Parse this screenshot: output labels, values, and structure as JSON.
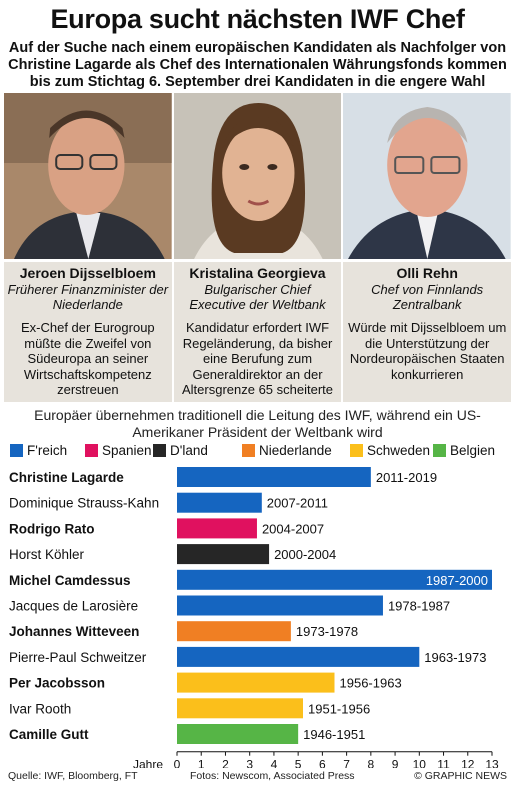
{
  "header": {
    "title": "Europa sucht nächsten IWF Chef",
    "subtitle": "Auf der Suche nach einem europäischen Kandidaten als Nachfolger von Christine Lagarde als Chef des Internationalen Währungsfonds kommen bis zum Stichtag 6. September drei Kandidaten in die engere Wahl"
  },
  "candidates": [
    {
      "name": "Jeroen Dijsselbloem",
      "role": "Früherer Finanzminister der Niederlande",
      "desc": "Ex-Chef der Eurogroup müßte die Zweifel von Südeuropa an seiner Wirtschaftskompetenz zerstreuen"
    },
    {
      "name": "Kristalina Georgieva",
      "role": "Bulgarischer Chief Executive der Weltbank",
      "desc": "Kandidatur erfordert IWF Regeländerung, da bisher eine Berufung zum Generaldirektor an der Altersgrenze 65 scheiterte"
    },
    {
      "name": "Olli Rehn",
      "role": "Chef von Finnlands Zentralbank",
      "desc": "Würde mit Dijsselbloem um die Unterstützung der Nordeuropäischen Staaten konkurrieren"
    }
  ],
  "chart_note": "Europäer übernehmen traditionell die Leitung des IWF, während ein US-Amerikaner Präsident der Weltbank wird",
  "legend": [
    {
      "label": "F'reich",
      "color": "#1565c0"
    },
    {
      "label": "Spanien",
      "color": "#e0115f"
    },
    {
      "label": "D'land",
      "color": "#262626"
    },
    {
      "label": "Niederlande",
      "color": "#f07f23"
    },
    {
      "label": "Schweden",
      "color": "#fbbf1b"
    },
    {
      "label": "Belgien",
      "color": "#56b546"
    }
  ],
  "chart_data": {
    "type": "bar",
    "orientation": "horizontal",
    "xlabel": "Jahre",
    "xlim": [
      0,
      13
    ],
    "xticks": [
      0,
      1,
      2,
      3,
      4,
      5,
      6,
      7,
      8,
      9,
      10,
      11,
      12,
      13
    ],
    "grid": false,
    "bars": [
      {
        "name": "Christine Lagarde",
        "period": "2011-2019",
        "value": 8,
        "country": "F'reich",
        "bold": true
      },
      {
        "name": "Dominique Strauss-Kahn",
        "period": "2007-2011",
        "value": 3.5,
        "country": "F'reich",
        "bold": false
      },
      {
        "name": "Rodrigo Rato",
        "period": "2004-2007",
        "value": 3.3,
        "country": "Spanien",
        "bold": true
      },
      {
        "name": "Horst Köhler",
        "period": "2000-2004",
        "value": 3.8,
        "country": "D'land",
        "bold": false
      },
      {
        "name": "Michel Camdessus",
        "period": "1987-2000",
        "value": 13,
        "country": "F'reich",
        "bold": true
      },
      {
        "name": "Jacques de Larosière",
        "period": "1978-1987",
        "value": 8.5,
        "country": "F'reich",
        "bold": false
      },
      {
        "name": "Johannes Witteveen",
        "period": "1973-1978",
        "value": 4.7,
        "country": "Niederlande",
        "bold": true
      },
      {
        "name": "Pierre-Paul Schweitzer",
        "period": "1963-1973",
        "value": 10,
        "country": "F'reich",
        "bold": false
      },
      {
        "name": "Per Jacobsson",
        "period": "1956-1963",
        "value": 6.5,
        "country": "Schweden",
        "bold": true
      },
      {
        "name": "Ivar Rooth",
        "period": "1951-1956",
        "value": 5.2,
        "country": "Schweden",
        "bold": false
      },
      {
        "name": "Camille Gutt",
        "period": "1946-1951",
        "value": 5,
        "country": "Belgien",
        "bold": true
      }
    ]
  },
  "footer": {
    "source": "Quelle: IWF, Bloomberg, FT",
    "photos": "Fotos: Newscom, Associated Press",
    "copyright": "© GRAPHIC NEWS"
  }
}
